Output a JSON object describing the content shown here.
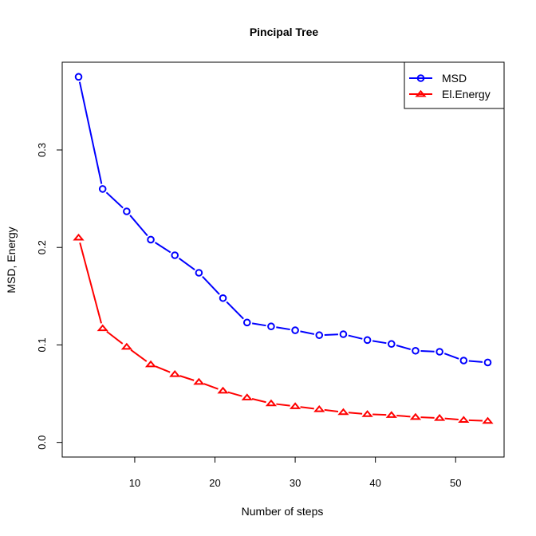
{
  "chart_data": {
    "type": "line",
    "title": "Pincipal Tree",
    "xlabel": "Number of steps",
    "ylabel": "MSD, Energy",
    "xlim": [
      0.96,
      56.04
    ],
    "ylim": [
      -0.015,
      0.39
    ],
    "xticks": [
      10,
      20,
      30,
      40,
      50
    ],
    "yticks": [
      0.0,
      0.1,
      0.2,
      0.3
    ],
    "xtick_labels": [
      "10",
      "20",
      "30",
      "40",
      "50"
    ],
    "ytick_labels": [
      "0.0",
      "0.1",
      "0.2",
      "0.3"
    ],
    "x": [
      3,
      6,
      9,
      12,
      15,
      18,
      21,
      24,
      27,
      30,
      33,
      36,
      39,
      42,
      45,
      48,
      51,
      54
    ],
    "series": [
      {
        "name": "MSD",
        "color": "#0000ff",
        "marker": "circle",
        "values": [
          0.375,
          0.26,
          0.237,
          0.208,
          0.192,
          0.174,
          0.148,
          0.123,
          0.119,
          0.115,
          0.11,
          0.111,
          0.105,
          0.101,
          0.094,
          0.093,
          0.084,
          0.082
        ]
      },
      {
        "name": "El.Energy",
        "color": "#ff0000",
        "marker": "triangle",
        "values": [
          0.21,
          0.117,
          0.098,
          0.08,
          0.07,
          0.062,
          0.053,
          0.046,
          0.04,
          0.037,
          0.034,
          0.031,
          0.029,
          0.028,
          0.026,
          0.025,
          0.023,
          0.022
        ]
      }
    ],
    "grid": false,
    "legend_position": "top-right"
  }
}
